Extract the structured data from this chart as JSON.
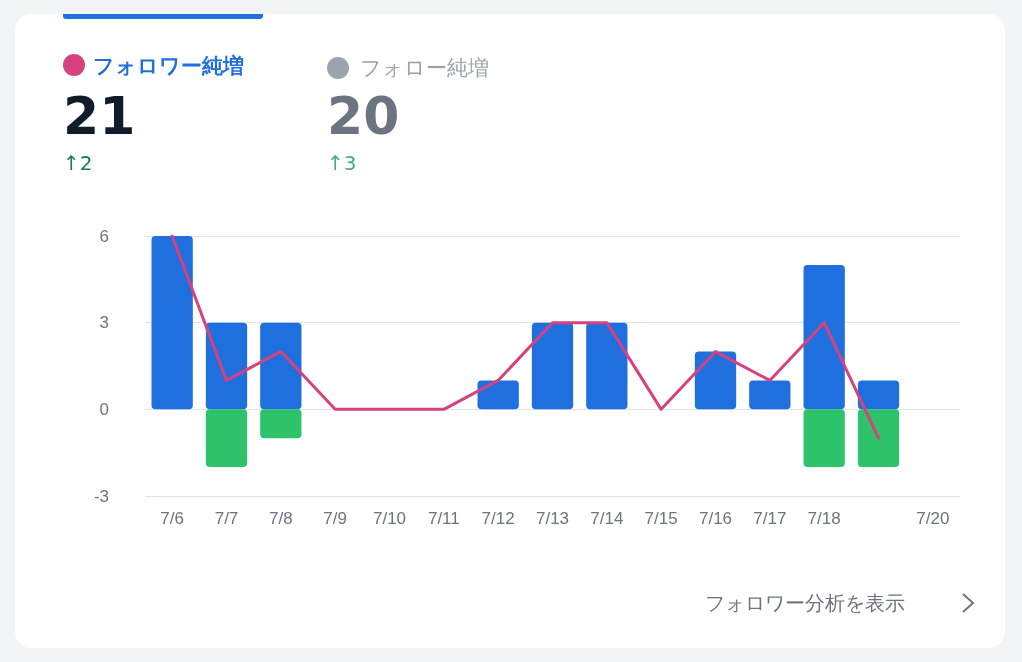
{
  "chart_data": {
    "type": "bar",
    "stacked": true,
    "categories": [
      "7/6",
      "7/7",
      "7/8",
      "7/9",
      "7/10",
      "7/11",
      "7/12",
      "7/13",
      "7/14",
      "7/15",
      "7/16",
      "7/17",
      "7/18",
      null,
      "7/20"
    ],
    "series": [
      {
        "color": "#1f6fde",
        "values": [
          6,
          3,
          3,
          0,
          0,
          0,
          1,
          3,
          3,
          0,
          2,
          1,
          5,
          1,
          0
        ]
      },
      {
        "color": "#2ec26b",
        "values": [
          0,
          -2,
          -1,
          0,
          0,
          0,
          0,
          0,
          0,
          0,
          0,
          0,
          -2,
          -2,
          0
        ]
      },
      {
        "type": "line",
        "name": "フォロワー純増",
        "color": "#d6427f",
        "values": [
          6,
          1,
          2,
          0,
          0,
          0,
          1,
          3,
          3,
          0,
          2,
          1,
          3,
          -1,
          null
        ]
      }
    ],
    "ylim": [
      -3,
      6
    ],
    "yticks": [
      -3,
      0,
      3,
      6
    ],
    "grid": "y",
    "legend": "top left",
    "marker": "none",
    "line_style": "solid",
    "annotations": [
      "21",
      "↑2",
      "フォロー純増",
      "20",
      "↑3",
      "フォロワー分析を表示"
    ]
  }
}
